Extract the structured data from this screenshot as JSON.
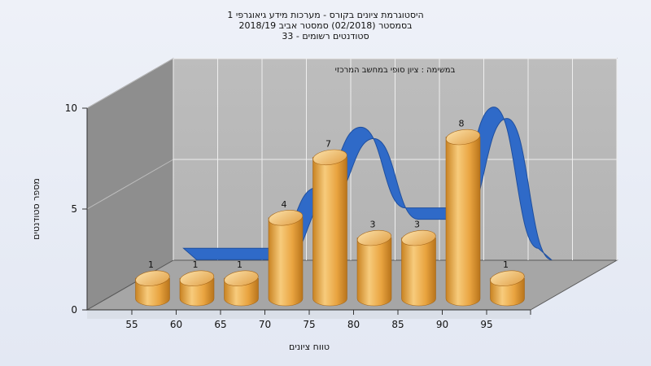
{
  "chart_data": {
    "type": "bar",
    "title": [
      "היסטוגרמת ציונים בקורס - מערכות מידע גיאוגרפי 1",
      "בסמסטר  (02/2018)  סמסטר אביב 2018/19",
      "סטודנטים רשומים - 33"
    ],
    "subtitle": "במשימה : ציון סופי במחשב המרכזי",
    "categories": [
      "55",
      "60",
      "65",
      "70",
      "75",
      "80",
      "85",
      "90",
      "95"
    ],
    "values": [
      1,
      1,
      1,
      4,
      7,
      3,
      3,
      8,
      1
    ],
    "xlabel": "טווח ציונים",
    "ylabel": "מספר סטודנטים",
    "yticks": [
      "0",
      "5",
      "10"
    ],
    "ylim": [
      0,
      10
    ],
    "grid": true,
    "series_style": "3d-cylinders-with-ribbon",
    "colors": {
      "bar": "#e9a440",
      "ribbon": "#2f6ac8",
      "wall": "#bfbfbf",
      "sidewall": "#8f8f8f",
      "floor": "#a9a9a9"
    }
  }
}
